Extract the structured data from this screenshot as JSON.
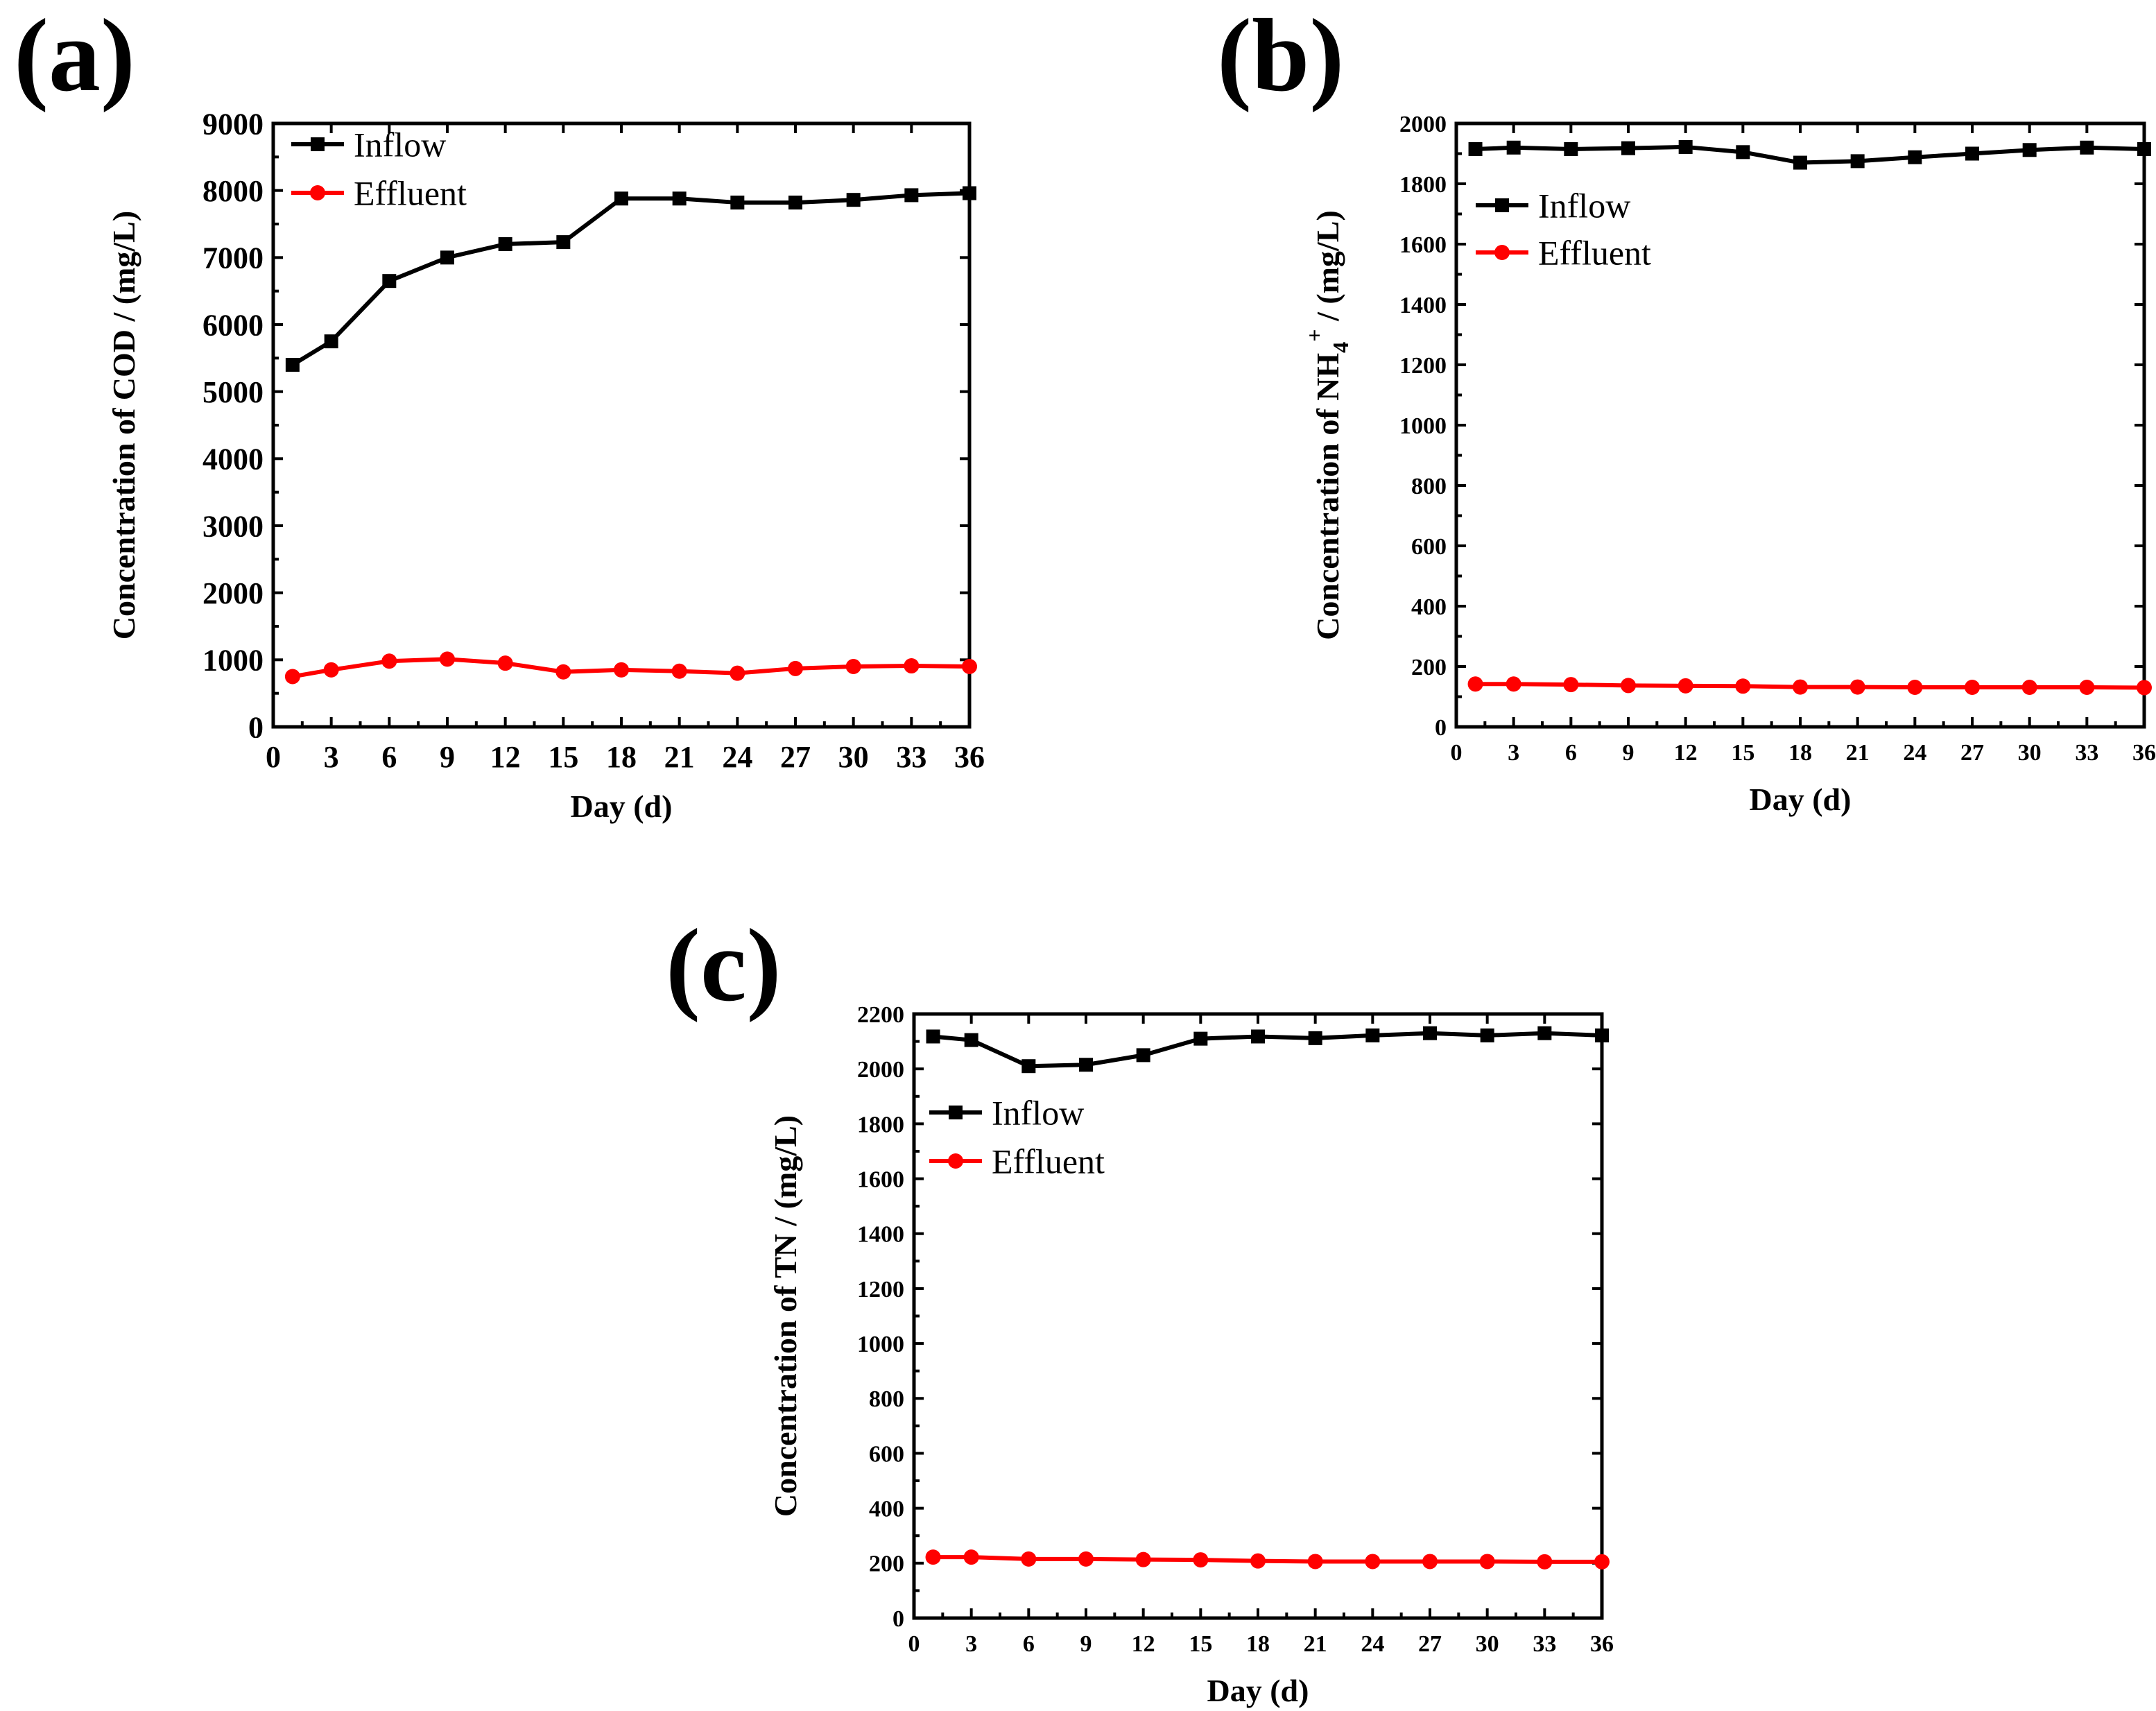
{
  "figure": {
    "colors": {
      "inflow": "#000000",
      "effluent": "#ff0000"
    }
  },
  "chart_data": [
    {
      "id": "a",
      "panel_label": "(a)",
      "type": "line",
      "xlabel": "Day (d)",
      "ylabel": "Concentration of COD / (mg/L)",
      "ylabel_parts": [],
      "xlim": [
        0,
        36
      ],
      "ylim": [
        0,
        9000
      ],
      "xticks": [
        0,
        3,
        6,
        9,
        12,
        15,
        18,
        21,
        24,
        27,
        30,
        33,
        36
      ],
      "yticks": [
        0,
        1000,
        2000,
        3000,
        4000,
        5000,
        6000,
        7000,
        8000,
        9000
      ],
      "x": [
        1,
        3,
        6,
        9,
        12,
        15,
        18,
        21,
        24,
        27,
        30,
        33,
        36
      ],
      "legend_position": "top-left",
      "series": [
        {
          "name": "Inflow",
          "marker": "square",
          "color": "#000000",
          "values": [
            5400,
            5750,
            6650,
            7000,
            7200,
            7230,
            7880,
            7880,
            7820,
            7820,
            7860,
            7930,
            7960
          ]
        },
        {
          "name": "Effluent",
          "marker": "circle",
          "color": "#ff0000",
          "values": [
            750,
            850,
            980,
            1010,
            950,
            820,
            850,
            830,
            800,
            870,
            900,
            910,
            900
          ]
        }
      ]
    },
    {
      "id": "b",
      "panel_label": "(b)",
      "type": "line",
      "xlabel": "Day (d)",
      "ylabel": "",
      "ylabel_parts": [
        "Concentration of NH",
        "4",
        "+",
        " / (mg/L)"
      ],
      "xlim": [
        0,
        36
      ],
      "ylim": [
        0,
        2000
      ],
      "xticks": [
        0,
        3,
        6,
        9,
        12,
        15,
        18,
        21,
        24,
        27,
        30,
        33,
        36
      ],
      "yticks": [
        0,
        200,
        400,
        600,
        800,
        1000,
        1200,
        1400,
        1600,
        1800,
        2000
      ],
      "x": [
        1,
        3,
        6,
        9,
        12,
        15,
        18,
        21,
        24,
        27,
        30,
        33,
        36
      ],
      "legend_position": "upper-left",
      "series": [
        {
          "name": "Inflow",
          "marker": "square",
          "color": "#000000",
          "values": [
            1915,
            1920,
            1915,
            1918,
            1922,
            1905,
            1870,
            1875,
            1888,
            1900,
            1912,
            1920,
            1915
          ]
        },
        {
          "name": "Effluent",
          "marker": "circle",
          "color": "#ff0000",
          "values": [
            142,
            142,
            140,
            137,
            136,
            135,
            132,
            132,
            131,
            131,
            131,
            131,
            130
          ]
        }
      ]
    },
    {
      "id": "c",
      "panel_label": "(c)",
      "type": "line",
      "xlabel": "Day (d)",
      "ylabel": "Concentration of TN / (mg/L)",
      "ylabel_parts": [],
      "xlim": [
        0,
        36
      ],
      "ylim": [
        0,
        2200
      ],
      "xticks": [
        0,
        3,
        6,
        9,
        12,
        15,
        18,
        21,
        24,
        27,
        30,
        33,
        36
      ],
      "yticks": [
        0,
        200,
        400,
        600,
        800,
        1000,
        1200,
        1400,
        1600,
        1800,
        2000,
        2200
      ],
      "x": [
        1,
        3,
        6,
        9,
        12,
        15,
        18,
        21,
        24,
        27,
        30,
        33,
        36
      ],
      "legend_position": "upper-left",
      "series": [
        {
          "name": "Inflow",
          "marker": "square",
          "color": "#000000",
          "values": [
            2118,
            2105,
            2010,
            2015,
            2050,
            2110,
            2118,
            2112,
            2122,
            2130,
            2122,
            2130,
            2122
          ]
        },
        {
          "name": "Effluent",
          "marker": "circle",
          "color": "#ff0000",
          "values": [
            222,
            222,
            215,
            215,
            213,
            212,
            208,
            206,
            206,
            206,
            206,
            205,
            205
          ]
        }
      ]
    }
  ]
}
